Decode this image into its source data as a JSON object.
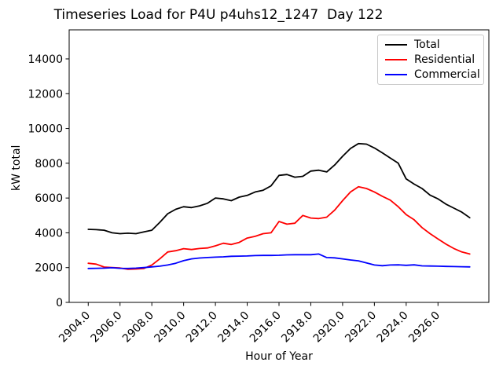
{
  "title": "Timeseries Load for P4U p4uhs12_1247  Day 122",
  "axes": {
    "xlabel": "Hour of Year",
    "ylabel": "kW total",
    "x_ticks": [
      "2904.0",
      "2906.0",
      "2908.0",
      "2910.0",
      "2912.0",
      "2914.0",
      "2916.0",
      "2918.0",
      "2920.0",
      "2922.0",
      "2924.0",
      "2926.0"
    ],
    "y_ticks": [
      "0",
      "2000",
      "4000",
      "6000",
      "8000",
      "10000",
      "12000",
      "14000"
    ]
  },
  "legend": {
    "position": "upper right",
    "entries": [
      "Total",
      "Residential",
      "Commercial"
    ]
  },
  "chart_data": {
    "type": "line",
    "title": "Timeseries Load for P4U p4uhs12_1247  Day 122",
    "xlabel": "Hour of Year",
    "ylabel": "kW total",
    "xlim": [
      2902.8,
      2929.2
    ],
    "ylim": [
      0,
      15670
    ],
    "grid": false,
    "x_tick_values": [
      2904,
      2906,
      2908,
      2910,
      2912,
      2914,
      2916,
      2918,
      2920,
      2922,
      2924,
      2926
    ],
    "y_tick_values": [
      0,
      2000,
      4000,
      6000,
      8000,
      10000,
      12000,
      14000
    ],
    "x": [
      2904.0,
      2904.5,
      2905.0,
      2905.5,
      2906.0,
      2906.5,
      2907.0,
      2907.5,
      2908.0,
      2908.5,
      2909.0,
      2909.5,
      2910.0,
      2910.5,
      2911.0,
      2911.5,
      2912.0,
      2912.5,
      2913.0,
      2913.5,
      2914.0,
      2914.5,
      2915.0,
      2915.5,
      2916.0,
      2916.5,
      2917.0,
      2917.5,
      2918.0,
      2918.5,
      2919.0,
      2919.5,
      2920.0,
      2920.5,
      2921.0,
      2921.5,
      2922.0,
      2922.5,
      2923.0,
      2923.5,
      2924.0,
      2924.5,
      2925.0,
      2925.5,
      2926.0,
      2926.5,
      2927.0,
      2927.5,
      2928.0
    ],
    "series": [
      {
        "name": "Total",
        "color": "#000000",
        "values": [
          4200,
          4180,
          4150,
          4000,
          3950,
          3980,
          3950,
          4050,
          4150,
          4600,
          5100,
          5350,
          5500,
          5450,
          5550,
          5700,
          6000,
          5950,
          5850,
          6050,
          6150,
          6350,
          6450,
          6700,
          7300,
          7350,
          7200,
          7250,
          7550,
          7600,
          7500,
          7900,
          8400,
          8850,
          9130,
          9100,
          8880,
          8600,
          8300,
          8000,
          7100,
          6800,
          6550,
          6170,
          5950,
          5650,
          5420,
          5190,
          4870
        ]
      },
      {
        "name": "Residential",
        "color": "#ff0000",
        "values": [
          2250,
          2200,
          2030,
          2000,
          1980,
          1900,
          1920,
          1950,
          2150,
          2500,
          2900,
          2970,
          3090,
          3040,
          3100,
          3130,
          3250,
          3400,
          3330,
          3450,
          3700,
          3800,
          3950,
          4000,
          4650,
          4500,
          4550,
          5000,
          4850,
          4820,
          4900,
          5300,
          5850,
          6350,
          6650,
          6550,
          6350,
          6100,
          5880,
          5500,
          5050,
          4750,
          4300,
          3950,
          3650,
          3350,
          3100,
          2900,
          2780
        ]
      },
      {
        "name": "Commercial",
        "color": "#0000ff",
        "values": [
          1950,
          1960,
          1970,
          1990,
          1960,
          1950,
          1970,
          2000,
          2040,
          2080,
          2150,
          2250,
          2400,
          2500,
          2550,
          2580,
          2600,
          2620,
          2650,
          2660,
          2670,
          2690,
          2700,
          2700,
          2710,
          2730,
          2740,
          2740,
          2740,
          2780,
          2580,
          2560,
          2500,
          2440,
          2390,
          2270,
          2150,
          2110,
          2150,
          2160,
          2130,
          2160,
          2100,
          2090,
          2080,
          2070,
          2060,
          2050,
          2040
        ]
      }
    ]
  }
}
